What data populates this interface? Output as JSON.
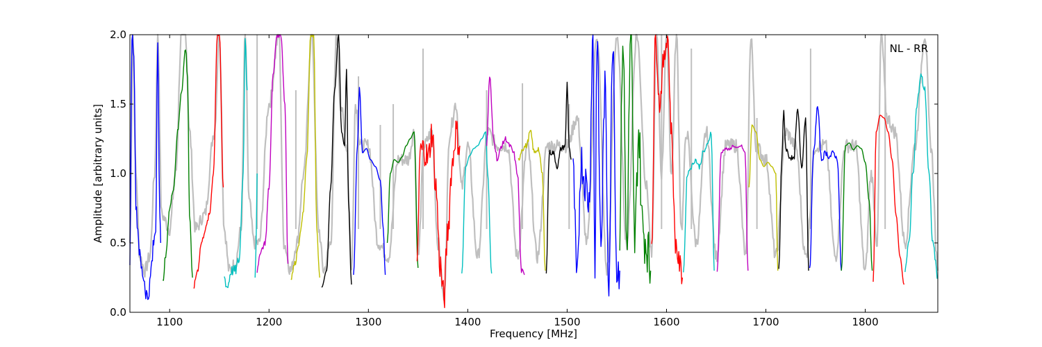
{
  "chart_data": {
    "type": "line",
    "title": "",
    "annotation": "NL - RR",
    "xlabel": "Frequency [MHz]",
    "ylabel": "Amplitude [arbitrary units]",
    "xlim": [
      1060,
      1873
    ],
    "ylim": [
      0.0,
      2.0
    ],
    "xticks": [
      1100,
      1200,
      1300,
      1400,
      1500,
      1600,
      1700,
      1800
    ],
    "yticks": [
      0.0,
      0.5,
      1.0,
      1.5,
      2.0
    ],
    "ytick_labels": [
      "0.0",
      "0.5",
      "1.0",
      "1.5",
      "2.0"
    ],
    "grid": false,
    "colors": {
      "background_trace": "#bfbfbf",
      "palette": [
        "#0000ff",
        "#008000",
        "#ff0000",
        "#00bfbf",
        "#bf00bf",
        "#bfbf00",
        "#000000"
      ]
    },
    "background_trace": {
      "x": [
        1060,
        1063,
        1066,
        1070,
        1075,
        1080,
        1085,
        1088,
        1092,
        1100,
        1106,
        1112,
        1116,
        1120,
        1126,
        1135,
        1145,
        1150,
        1155,
        1160,
        1166,
        1172,
        1176,
        1180,
        1185,
        1190,
        1200,
        1210,
        1215,
        1222,
        1228,
        1235,
        1243,
        1250,
        1255,
        1262,
        1268,
        1272,
        1278,
        1283,
        1287,
        1292,
        1300,
        1310,
        1320,
        1330,
        1340,
        1346,
        1350,
        1356,
        1364,
        1370,
        1376,
        1382,
        1388,
        1394,
        1400,
        1410,
        1420,
        1430,
        1440,
        1450,
        1460,
        1470,
        1480,
        1490,
        1500,
        1510,
        1520,
        1530,
        1540,
        1550,
        1560,
        1570,
        1580,
        1585,
        1590,
        1595,
        1600,
        1605,
        1610,
        1615,
        1620,
        1630,
        1640,
        1650,
        1660,
        1670,
        1680,
        1685,
        1690,
        1700,
        1710,
        1720,
        1730,
        1740,
        1750,
        1760,
        1770,
        1780,
        1790,
        1800,
        1806,
        1812,
        1816,
        1822,
        1830,
        1840,
        1850,
        1860,
        1866,
        1873
      ],
      "y": [
        0.5,
        2.0,
        1.0,
        0.4,
        0.3,
        0.4,
        1.0,
        2.0,
        0.7,
        0.6,
        1.0,
        2.0,
        2.0,
        1.3,
        0.6,
        0.7,
        1.3,
        2.0,
        0.6,
        0.3,
        0.35,
        0.6,
        2.0,
        0.8,
        0.5,
        0.5,
        1.5,
        2.0,
        0.5,
        0.3,
        0.5,
        1.0,
        2.0,
        0.6,
        0.3,
        0.5,
        2.0,
        1.5,
        1.2,
        0.3,
        1.5,
        1.2,
        1.2,
        0.5,
        0.4,
        1.1,
        1.1,
        1.3,
        0.4,
        1.2,
        1.3,
        0.5,
        0.1,
        1.3,
        1.5,
        0.9,
        1.2,
        0.4,
        1.3,
        1.2,
        1.2,
        0.4,
        1.2,
        0.4,
        1.2,
        1.2,
        1.2,
        1.4,
        0.5,
        2.0,
        0.3,
        2.0,
        0.5,
        2.0,
        0.9,
        0.4,
        2.0,
        1.0,
        2.0,
        1.0,
        2.0,
        0.6,
        1.3,
        0.5,
        1.3,
        0.4,
        1.2,
        1.2,
        0.4,
        2.0,
        1.2,
        1.1,
        0.4,
        1.3,
        1.2,
        0.4,
        1.2,
        1.2,
        0.4,
        1.2,
        1.2,
        0.3,
        1.0,
        0.5,
        2.0,
        1.4,
        1.3,
        0.5,
        1.2,
        2.0,
        1.2,
        0.3
      ],
      "spikes": [
        {
          "x": 1188,
          "y": 2.0
        },
        {
          "x": 1227,
          "y": 1.6
        },
        {
          "x": 1290,
          "y": 1.7
        },
        {
          "x": 1312,
          "y": 1.35
        },
        {
          "x": 1325,
          "y": 1.5
        },
        {
          "x": 1355,
          "y": 1.9
        },
        {
          "x": 1419,
          "y": 1.6
        },
        {
          "x": 1455,
          "y": 1.65
        },
        {
          "x": 1502,
          "y": 1.5
        },
        {
          "x": 1595,
          "y": 2.0
        },
        {
          "x": 1625,
          "y": 1.9
        },
        {
          "x": 1691,
          "y": 1.4
        },
        {
          "x": 1745,
          "y": 1.9
        },
        {
          "x": 1820,
          "y": 2.0
        }
      ]
    },
    "series": [
      {
        "color": "#0000ff",
        "x": [
          1060,
          1062,
          1064,
          1066,
          1068,
          1070,
          1072,
          1074,
          1076,
          1078,
          1080,
          1082,
          1084,
          1086,
          1088,
          1090,
          1091
        ],
        "y": [
          0.4,
          2.0,
          1.9,
          0.8,
          0.6,
          0.4,
          0.3,
          0.25,
          0.15,
          0.1,
          0.2,
          0.35,
          0.5,
          0.6,
          2.0,
          0.7,
          0.5
        ],
        "noise": 0.06
      },
      {
        "color": "#008000",
        "x": [
          1093,
          1096,
          1100,
          1104,
          1108,
          1112,
          1116,
          1118,
          1120,
          1123
        ],
        "y": [
          0.22,
          0.4,
          0.75,
          0.9,
          1.3,
          1.6,
          1.9,
          1.7,
          0.7,
          0.25
        ],
        "noise": 0.02
      },
      {
        "color": "#ff0000",
        "x": [
          1124,
          1128,
          1132,
          1136,
          1140,
          1144,
          1148,
          1150,
          1154
        ],
        "y": [
          0.18,
          0.3,
          0.5,
          0.6,
          0.7,
          1.0,
          2.0,
          2.0,
          0.9
        ],
        "noise": 0.02
      },
      {
        "color": "#00bfbf",
        "x": [
          1155,
          1158,
          1162,
          1166,
          1170,
          1174,
          1176,
          1178
        ],
        "y": [
          0.25,
          0.18,
          0.3,
          0.3,
          0.38,
          1.0,
          2.0,
          1.6
        ],
        "noise": 0.04
      },
      {
        "color": "#00bfbf",
        "x": [
          1186,
          1187,
          1188
        ],
        "y": [
          0.25,
          0.5,
          1.0
        ],
        "noise": 0.0
      },
      {
        "color": "#bf00bf",
        "x": [
          1188,
          1192,
          1196,
          1200,
          1204,
          1208,
          1212,
          1216,
          1219
        ],
        "y": [
          0.3,
          0.45,
          0.5,
          0.9,
          1.7,
          2.0,
          2.0,
          1.5,
          0.35
        ],
        "noise": 0.02
      },
      {
        "color": "#bfbf00",
        "x": [
          1222,
          1226,
          1230,
          1234,
          1238,
          1242,
          1245,
          1248,
          1251
        ],
        "y": [
          0.25,
          0.35,
          0.5,
          0.7,
          1.1,
          2.0,
          2.0,
          0.6,
          0.25
        ],
        "noise": 0.02
      },
      {
        "color": "#000000",
        "x": [
          1253,
          1258,
          1262,
          1266,
          1270,
          1273,
          1276,
          1278,
          1280,
          1283
        ],
        "y": [
          0.18,
          0.3,
          0.9,
          1.6,
          2.0,
          1.3,
          1.2,
          1.75,
          0.8,
          0.2
        ],
        "noise": 0.0
      },
      {
        "color": "#0000ff",
        "x": [
          1285,
          1289,
          1291,
          1294,
          1298,
          1302,
          1307,
          1312,
          1315,
          1317
        ],
        "y": [
          0.27,
          1.2,
          1.62,
          1.15,
          1.18,
          1.1,
          1.05,
          0.95,
          0.6,
          0.27
        ],
        "noise": 0.0
      },
      {
        "color": "#008000",
        "x": [
          1319,
          1322,
          1326,
          1330,
          1334,
          1338,
          1342,
          1346,
          1350
        ],
        "y": [
          0.5,
          1.0,
          1.1,
          1.08,
          1.12,
          1.2,
          1.25,
          1.3,
          0.32
        ],
        "noise": 0.0
      },
      {
        "color": "#ff0000",
        "x": [
          1349,
          1352,
          1356,
          1360,
          1364,
          1368,
          1372,
          1376,
          1380,
          1384,
          1388,
          1392
        ],
        "y": [
          0.27,
          1.15,
          1.18,
          1.1,
          1.3,
          0.9,
          0.35,
          0.1,
          0.6,
          1.05,
          1.3,
          1.2
        ],
        "noise": 0.12
      },
      {
        "color": "#00bfbf",
        "x": [
          1394,
          1398,
          1402,
          1406,
          1410,
          1414,
          1418,
          1420,
          1424
        ],
        "y": [
          0.28,
          1.05,
          1.13,
          1.18,
          1.2,
          1.25,
          1.3,
          1.0,
          0.28
        ],
        "noise": 0.0
      },
      {
        "color": "#bf00bf",
        "x": [
          1419,
          1422,
          1426,
          1430,
          1434,
          1438,
          1442,
          1446,
          1450,
          1454,
          1457
        ],
        "y": [
          1.2,
          1.7,
          1.25,
          1.1,
          1.2,
          1.25,
          1.2,
          1.15,
          1.0,
          0.3,
          0.27
        ],
        "noise": 0.02
      },
      {
        "color": "#bfbf00",
        "x": [
          1451,
          1455,
          1459,
          1463,
          1467,
          1471,
          1475,
          1478
        ],
        "y": [
          1.1,
          1.18,
          1.2,
          1.3,
          1.15,
          1.18,
          1.0,
          0.3
        ],
        "noise": 0.02
      },
      {
        "color": "#000000",
        "x": [
          1479,
          1482,
          1486,
          1490,
          1494,
          1498,
          1500,
          1502,
          1504
        ],
        "y": [
          0.3,
          1.15,
          1.15,
          1.05,
          1.18,
          1.2,
          1.65,
          1.2,
          1.1
        ],
        "noise": 0.02
      },
      {
        "color": "#0000ff",
        "x": [
          1506,
          1510,
          1514,
          1518,
          1522,
          1526,
          1528,
          1530,
          1534,
          1538,
          1542,
          1546,
          1550,
          1553
        ],
        "y": [
          1.0,
          0.2,
          1.1,
          0.95,
          0.8,
          2.0,
          0.3,
          2.0,
          0.5,
          1.6,
          0.25,
          2.0,
          0.3,
          0.3
        ],
        "noise": 0.15
      },
      {
        "color": "#008000",
        "x": [
          1553,
          1556,
          1560,
          1564,
          1568,
          1572,
          1576,
          1580,
          1584
        ],
        "y": [
          0.6,
          2.0,
          0.5,
          2.0,
          0.5,
          1.3,
          0.6,
          0.5,
          0.3
        ],
        "noise": 0.2
      },
      {
        "color": "#ff0000",
        "x": [
          1585,
          1589,
          1593,
          1597,
          1601,
          1605,
          1609,
          1613,
          1616
        ],
        "y": [
          0.5,
          2.0,
          1.5,
          1.8,
          2.0,
          1.3,
          0.5,
          0.35,
          0.25
        ],
        "noise": 0.08
      },
      {
        "color": "#00bfbf",
        "x": [
          1617,
          1621,
          1625,
          1629,
          1633,
          1637,
          1641,
          1645,
          1648
        ],
        "y": [
          0.3,
          1.0,
          1.05,
          1.1,
          1.05,
          1.15,
          1.2,
          1.3,
          0.3
        ],
        "noise": 0.02
      },
      {
        "color": "#bf00bf",
        "x": [
          1651,
          1655,
          1659,
          1663,
          1667,
          1671,
          1675,
          1679,
          1682
        ],
        "y": [
          0.3,
          1.15,
          1.18,
          1.17,
          1.2,
          1.18,
          1.2,
          1.15,
          0.3
        ],
        "noise": 0.01
      },
      {
        "color": "#bfbf00",
        "x": [
          1683,
          1686,
          1690,
          1694,
          1698,
          1702,
          1706,
          1710,
          1712
        ],
        "y": [
          0.9,
          1.35,
          1.3,
          1.1,
          1.05,
          1.08,
          1.05,
          1.0,
          0.3
        ],
        "noise": 0.0
      },
      {
        "color": "#000000",
        "x": [
          1713,
          1716,
          1718,
          1720,
          1724,
          1728,
          1732,
          1736,
          1740,
          1743
        ],
        "y": [
          0.3,
          1.1,
          1.45,
          1.18,
          1.12,
          1.1,
          1.45,
          1.05,
          1.4,
          0.3
        ],
        "noise": 0.02
      },
      {
        "color": "#0000ff",
        "x": [
          1744,
          1748,
          1752,
          1756,
          1760,
          1764,
          1768,
          1772,
          1776
        ],
        "y": [
          0.3,
          1.15,
          1.48,
          1.1,
          1.15,
          1.12,
          1.15,
          1.1,
          0.3
        ],
        "noise": 0.02
      },
      {
        "color": "#008000",
        "x": [
          1776,
          1780,
          1784,
          1788,
          1792,
          1796,
          1800,
          1804,
          1807
        ],
        "y": [
          0.3,
          1.2,
          1.22,
          1.17,
          1.2,
          1.18,
          1.08,
          0.8,
          0.3
        ],
        "noise": 0.0
      },
      {
        "color": "#ff0000",
        "x": [
          1808,
          1811,
          1815,
          1819,
          1823,
          1827,
          1831,
          1835,
          1839
        ],
        "y": [
          0.22,
          1.3,
          1.42,
          1.4,
          1.3,
          1.1,
          0.7,
          0.4,
          0.2
        ],
        "noise": 0.0
      },
      {
        "color": "#00bfbf",
        "x": [
          1840,
          1844,
          1848,
          1852,
          1856,
          1860,
          1864,
          1868,
          1873
        ],
        "y": [
          0.3,
          0.5,
          1.0,
          1.5,
          1.7,
          1.6,
          1.0,
          0.5,
          0.25
        ],
        "noise": 0.03
      }
    ]
  }
}
